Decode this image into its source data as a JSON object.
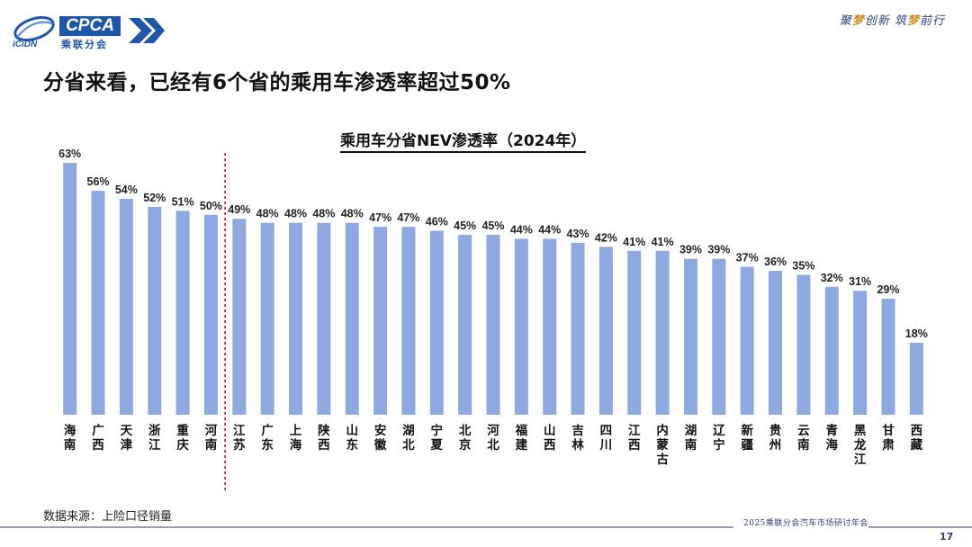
{
  "header": {
    "logo_text": "CPCA",
    "logo_subtext": "乘联分会",
    "logo_emblem_text": "iCiDN",
    "slogan_parts": [
      "聚",
      "梦",
      "创新 筑",
      "梦",
      "前行"
    ]
  },
  "headline": "分省来看，已经有6个省的乘用车渗透率超过50%",
  "chart_data": {
    "type": "bar",
    "title": "乘用车分省NEV渗透率（2024年）",
    "categories": [
      "海南",
      "广西",
      "天津",
      "浙江",
      "重庆",
      "河南",
      "江苏",
      "广东",
      "上海",
      "陕西",
      "山东",
      "安徽",
      "湖北",
      "宁夏",
      "北京",
      "河北",
      "福建",
      "山西",
      "吉林",
      "四川",
      "江西",
      "内蒙古",
      "湖南",
      "辽宁",
      "新疆",
      "贵州",
      "云南",
      "青海",
      "黑龙江",
      "甘肃",
      "西藏"
    ],
    "values": [
      63,
      56,
      54,
      52,
      51,
      50,
      49,
      48,
      48,
      48,
      48,
      47,
      47,
      46,
      45,
      45,
      44,
      44,
      43,
      42,
      41,
      41,
      39,
      39,
      37,
      36,
      35,
      32,
      31,
      29,
      18
    ],
    "value_suffix": "%",
    "ylim": [
      0,
      63
    ],
    "bar_color": "#8ea9e0",
    "divider_after_index": 5,
    "divider_color": "#c00000",
    "xlabel": "",
    "ylabel": ""
  },
  "source_note": "数据来源：上险口径销量",
  "footer": {
    "event": "2025乘联分会汽车市场研讨年会",
    "page_number": "17"
  }
}
